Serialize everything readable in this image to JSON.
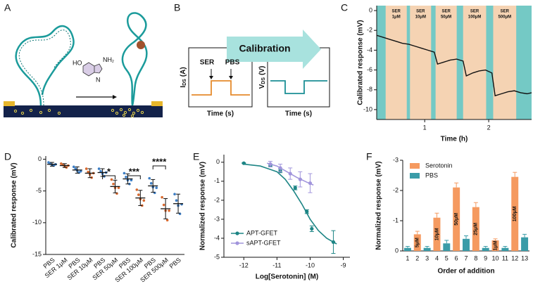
{
  "panel_labels": [
    "A",
    "B",
    "C",
    "D",
    "E",
    "F"
  ],
  "panel_a": {
    "molecule": {
      "hydroxyl": "HO",
      "amine": "NH",
      "amine_sub": "2",
      "ring_n": "N"
    }
  },
  "panel_b": {
    "title": "Calibration",
    "arrow_labels": [
      "SER",
      "PBS"
    ],
    "left_axis": {
      "main": "I",
      "sub": "DS",
      "unit": "(A)"
    },
    "right_axis": {
      "main": "V",
      "sub": "DS",
      "unit": "(V)"
    },
    "x_labels": [
      "Time (s)",
      "Time (s)"
    ]
  },
  "chart_data": [
    {
      "type": "line",
      "xlabel": "Time (h)",
      "ylabel": "Calibrated response (mV)",
      "xlim": [
        0.25,
        2.67
      ],
      "xticks": [
        1,
        2
      ],
      "ylim": [
        -11,
        0.5
      ],
      "yticks": [
        0,
        -2,
        -4,
        -6,
        -8,
        -10
      ],
      "background_color": "#74c9c5",
      "band_color": "#f5d3b3",
      "bands": [
        {
          "label": [
            "SER",
            "1μM"
          ],
          "x": [
            0.39,
            0.72
          ]
        },
        {
          "label": [
            "SER",
            "10μM"
          ],
          "x": [
            0.77,
            1.1
          ]
        },
        {
          "label": [
            "SER",
            "50μM"
          ],
          "x": [
            1.17,
            1.5
          ]
        },
        {
          "label": [
            "SER",
            "100μM"
          ],
          "x": [
            1.6,
            1.96
          ]
        },
        {
          "label": [
            "SER",
            "500μM"
          ],
          "x": [
            2.07,
            2.43
          ]
        }
      ],
      "series": [
        {
          "color": "#111111",
          "x": [
            0.25,
            0.35,
            0.45,
            0.55,
            0.65,
            0.75,
            0.85,
            0.95,
            1.05,
            1.15,
            1.2,
            1.3,
            1.4,
            1.5,
            1.6,
            1.65,
            1.75,
            1.85,
            1.95,
            2.05,
            2.1,
            2.2,
            2.3,
            2.4,
            2.5,
            2.6,
            2.67
          ],
          "values": [
            -2.5,
            -2.7,
            -2.9,
            -3.1,
            -3.3,
            -3.4,
            -3.6,
            -3.8,
            -4.0,
            -4.2,
            -5.4,
            -5.2,
            -5.0,
            -4.9,
            -5.1,
            -6.6,
            -6.3,
            -6.1,
            -6.0,
            -6.3,
            -8.6,
            -8.4,
            -8.2,
            -8.1,
            -8.3,
            -8.4,
            -8.3
          ]
        }
      ]
    },
    {
      "type": "dot",
      "ylabel": "Calibrated response (mV)",
      "categories": [
        "PBS",
        "SER 1μM",
        "PBS",
        "SER 10μM",
        "PBS",
        "SER 50μM",
        "PBS",
        "SER 100μM",
        "PBS",
        "SER 500μM",
        "PBS"
      ],
      "colors": [
        "#3c7dc4",
        "#d8692f"
      ],
      "ylim": [
        -15,
        0.5
      ],
      "yticks": [
        0,
        -5,
        -10,
        -15
      ],
      "means": [
        -0.8,
        -1.0,
        -1.7,
        -2.2,
        -2.1,
        -4.3,
        -3.1,
        -6.1,
        -4.2,
        -7.8,
        -7.0
      ],
      "errors": [
        0.3,
        0.3,
        0.5,
        0.7,
        0.6,
        1.0,
        0.8,
        1.2,
        1.0,
        1.6,
        1.5
      ],
      "points": [
        [
          -0.5,
          -0.7,
          -0.9,
          -1.0,
          -0.8
        ],
        [
          -0.7,
          -0.9,
          -1.1,
          -1.3,
          -1.0
        ],
        [
          -1.2,
          -1.5,
          -1.8,
          -2.1,
          -1.9
        ],
        [
          -1.5,
          -2.0,
          -2.4,
          -2.9,
          -2.2
        ],
        [
          -1.5,
          -1.9,
          -2.3,
          -2.7,
          -2.1
        ],
        [
          -3.2,
          -3.9,
          -4.5,
          -5.4,
          -4.5
        ],
        [
          -2.2,
          -2.8,
          -3.3,
          -3.9,
          -3.3
        ],
        [
          -4.8,
          -5.6,
          -6.3,
          -7.3,
          -6.5
        ],
        [
          -3.0,
          -3.8,
          -4.4,
          -5.3,
          -4.5
        ],
        [
          -6.0,
          -7.2,
          -8.1,
          -9.6,
          -8.1
        ],
        [
          -5.5,
          -6.5,
          -7.3,
          -8.6,
          -7.1
        ]
      ],
      "significance": [
        "*",
        "***",
        "****"
      ]
    },
    {
      "type": "scatter",
      "xlabel": "Log[Serotonin] (M)",
      "ylabel": "Normalized response (mV)",
      "xlim": [
        -12.6,
        -8.8
      ],
      "xticks": [
        -12,
        -11,
        -10,
        -9
      ],
      "ylim": [
        -5,
        0.4
      ],
      "yticks": [
        0,
        -1,
        -2,
        -3,
        -4,
        -5
      ],
      "legend": "lower left",
      "series": [
        {
          "name": "APT-GFET",
          "color": "#1d8585",
          "x": [
            -12,
            -11.2,
            -10.9,
            -10.45,
            -10.1,
            -9.95,
            -9.3
          ],
          "values": [
            -0.05,
            -0.15,
            -0.45,
            -1.35,
            -2.6,
            -3.5,
            -4.2
          ],
          "errors": [
            0.02,
            0.05,
            0.1,
            0.1,
            0.1,
            0.15,
            0.6
          ],
          "curve": {
            "x": [
              -12,
              -11.5,
              -11,
              -10.75,
              -10.5,
              -10.25,
              -10,
              -9.75,
              -9.5,
              -9.2
            ],
            "y": [
              -0.1,
              -0.2,
              -0.5,
              -0.9,
              -1.5,
              -2.2,
              -3.0,
              -3.6,
              -4.0,
              -4.3
            ]
          }
        },
        {
          "name": "sAPT-GFET",
          "color": "#a195dc",
          "x": [
            -11.2,
            -10.9,
            -10.6,
            -10.3,
            -10.0
          ],
          "values": [
            -0.1,
            -0.3,
            -0.6,
            -0.9,
            -1.1
          ],
          "errors": [
            0.15,
            0.2,
            0.3,
            0.4,
            0.5
          ],
          "curve": {
            "x": [
              -11.3,
              -11,
              -10.7,
              -10.4,
              -10.1,
              -9.9
            ],
            "y": [
              -0.05,
              -0.2,
              -0.5,
              -0.8,
              -1.05,
              -1.2
            ]
          }
        }
      ]
    },
    {
      "type": "bar",
      "xlabel": "Order of addition",
      "ylabel": "Normalized response (mV)",
      "categories": [
        "1",
        "2",
        "3",
        "4",
        "5",
        "6",
        "7",
        "8",
        "9",
        "10",
        "11",
        "12",
        "13"
      ],
      "ylim": [
        0,
        -3
      ],
      "yticks": [
        -3,
        -2,
        -1,
        0
      ],
      "legend": "upper left",
      "series": [
        {
          "name": "Serotonin",
          "color": "#f59a60",
          "values": [
            null,
            -0.55,
            null,
            -1.1,
            null,
            -2.1,
            null,
            -1.45,
            null,
            -0.35,
            null,
            -2.45,
            null
          ],
          "errors": [
            null,
            0.1,
            null,
            0.15,
            null,
            0.15,
            null,
            0.15,
            null,
            0.05,
            null,
            0.15,
            null
          ],
          "bar_labels": [
            null,
            "5μM",
            null,
            "10μM",
            null,
            "50μM",
            null,
            "25μM",
            null,
            "1μM",
            null,
            "100μM",
            null
          ]
        },
        {
          "name": "PBS",
          "color": "#3a9ca8",
          "values": [
            -0.1,
            null,
            -0.1,
            null,
            -0.25,
            null,
            -0.4,
            null,
            -0.1,
            null,
            -0.1,
            null,
            -0.45
          ],
          "errors": [
            0.05,
            null,
            0.05,
            null,
            0.1,
            null,
            0.1,
            null,
            0.05,
            null,
            0.05,
            null,
            0.1
          ]
        }
      ]
    }
  ]
}
